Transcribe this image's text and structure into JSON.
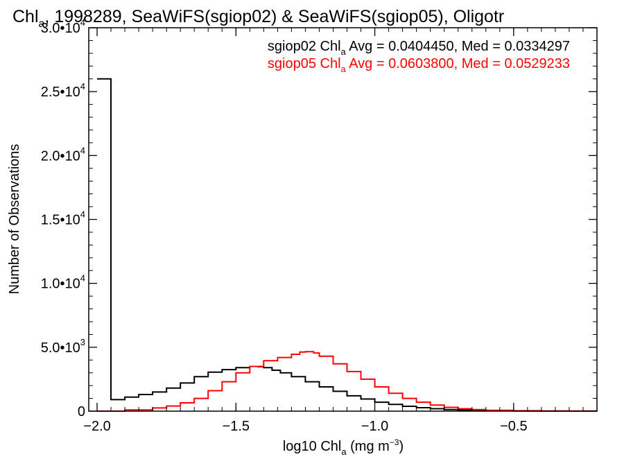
{
  "chart_data": {
    "type": "line",
    "title": {
      "main": "Chl",
      "sub": "a",
      "rest": ", 1998289, SeaWiFS(sgiop02) & SeaWiFS(sgiop05), Oligotr"
    },
    "xlabel": {
      "pre": "log10 Chl",
      "sub": "a",
      "mid": " (mg m",
      "sup": "−3",
      "post": ")"
    },
    "ylabel": "Number of Observations",
    "xlim": [
      -2.03,
      -0.2
    ],
    "ylim": [
      0,
      30000
    ],
    "x_ticks": [
      {
        "value": -2.0,
        "label": "−2.0"
      },
      {
        "value": -1.5,
        "label": "−1.5"
      },
      {
        "value": -1.0,
        "label": "−1.0"
      },
      {
        "value": -0.5,
        "label": "−0.5"
      }
    ],
    "y_ticks": [
      {
        "value": 0,
        "mant": "0",
        "exp": ""
      },
      {
        "value": 5000,
        "mant": "5.0•10",
        "exp": "3"
      },
      {
        "value": 10000,
        "mant": "1.0•10",
        "exp": "4"
      },
      {
        "value": 15000,
        "mant": "1.5•10",
        "exp": "4"
      },
      {
        "value": 20000,
        "mant": "2.0•10",
        "exp": "4"
      },
      {
        "value": 25000,
        "mant": "2.5•10",
        "exp": "4"
      },
      {
        "value": 30000,
        "mant": "3.0•10",
        "exp": "4"
      }
    ],
    "grid": false,
    "legend_position": "top-right",
    "series": [
      {
        "name": "sgiop02",
        "legend": {
          "pre": "sgiop02 Chl",
          "sub": "a",
          "post": " Avg = 0.0404450, Med = 0.0334297"
        },
        "color": "#000000",
        "x": [
          -2.0,
          -1.95,
          -1.9,
          -1.85,
          -1.8,
          -1.75,
          -1.7,
          -1.65,
          -1.6,
          -1.55,
          -1.5,
          -1.45,
          -1.42,
          -1.4,
          -1.37,
          -1.34,
          -1.3,
          -1.25,
          -1.2,
          -1.15,
          -1.1,
          -1.05,
          -1.0,
          -0.95,
          -0.9,
          -0.85,
          -0.8,
          -0.75,
          -0.7,
          -0.65,
          -0.6,
          -0.5,
          -0.4,
          -0.3,
          -0.2
        ],
        "y": [
          26000,
          900,
          1100,
          1300,
          1500,
          1800,
          2200,
          2700,
          3050,
          3250,
          3400,
          3500,
          3480,
          3400,
          3200,
          3000,
          2700,
          2300,
          1900,
          1550,
          1200,
          950,
          700,
          530,
          380,
          270,
          190,
          120,
          80,
          50,
          30,
          15,
          8,
          4,
          2
        ]
      },
      {
        "name": "sgiop05",
        "legend": {
          "pre": "sgiop05 Chl",
          "sub": "a",
          "post": " Avg = 0.0603800, Med = 0.0529233"
        },
        "color": "#ff0000",
        "x": [
          -2.0,
          -1.9,
          -1.8,
          -1.75,
          -1.7,
          -1.65,
          -1.6,
          -1.55,
          -1.5,
          -1.45,
          -1.4,
          -1.35,
          -1.3,
          -1.27,
          -1.25,
          -1.22,
          -1.2,
          -1.15,
          -1.1,
          -1.05,
          -1.0,
          -0.95,
          -0.9,
          -0.85,
          -0.8,
          -0.75,
          -0.7,
          -0.65,
          -0.6,
          -0.5,
          -0.4,
          -0.3,
          -0.2
        ],
        "y": [
          0,
          100,
          250,
          400,
          650,
          1000,
          1600,
          2300,
          3000,
          3500,
          3950,
          4200,
          4450,
          4620,
          4650,
          4550,
          4300,
          3700,
          3100,
          2500,
          1900,
          1400,
          1000,
          700,
          480,
          300,
          190,
          120,
          70,
          30,
          12,
          5,
          2
        ]
      }
    ]
  }
}
